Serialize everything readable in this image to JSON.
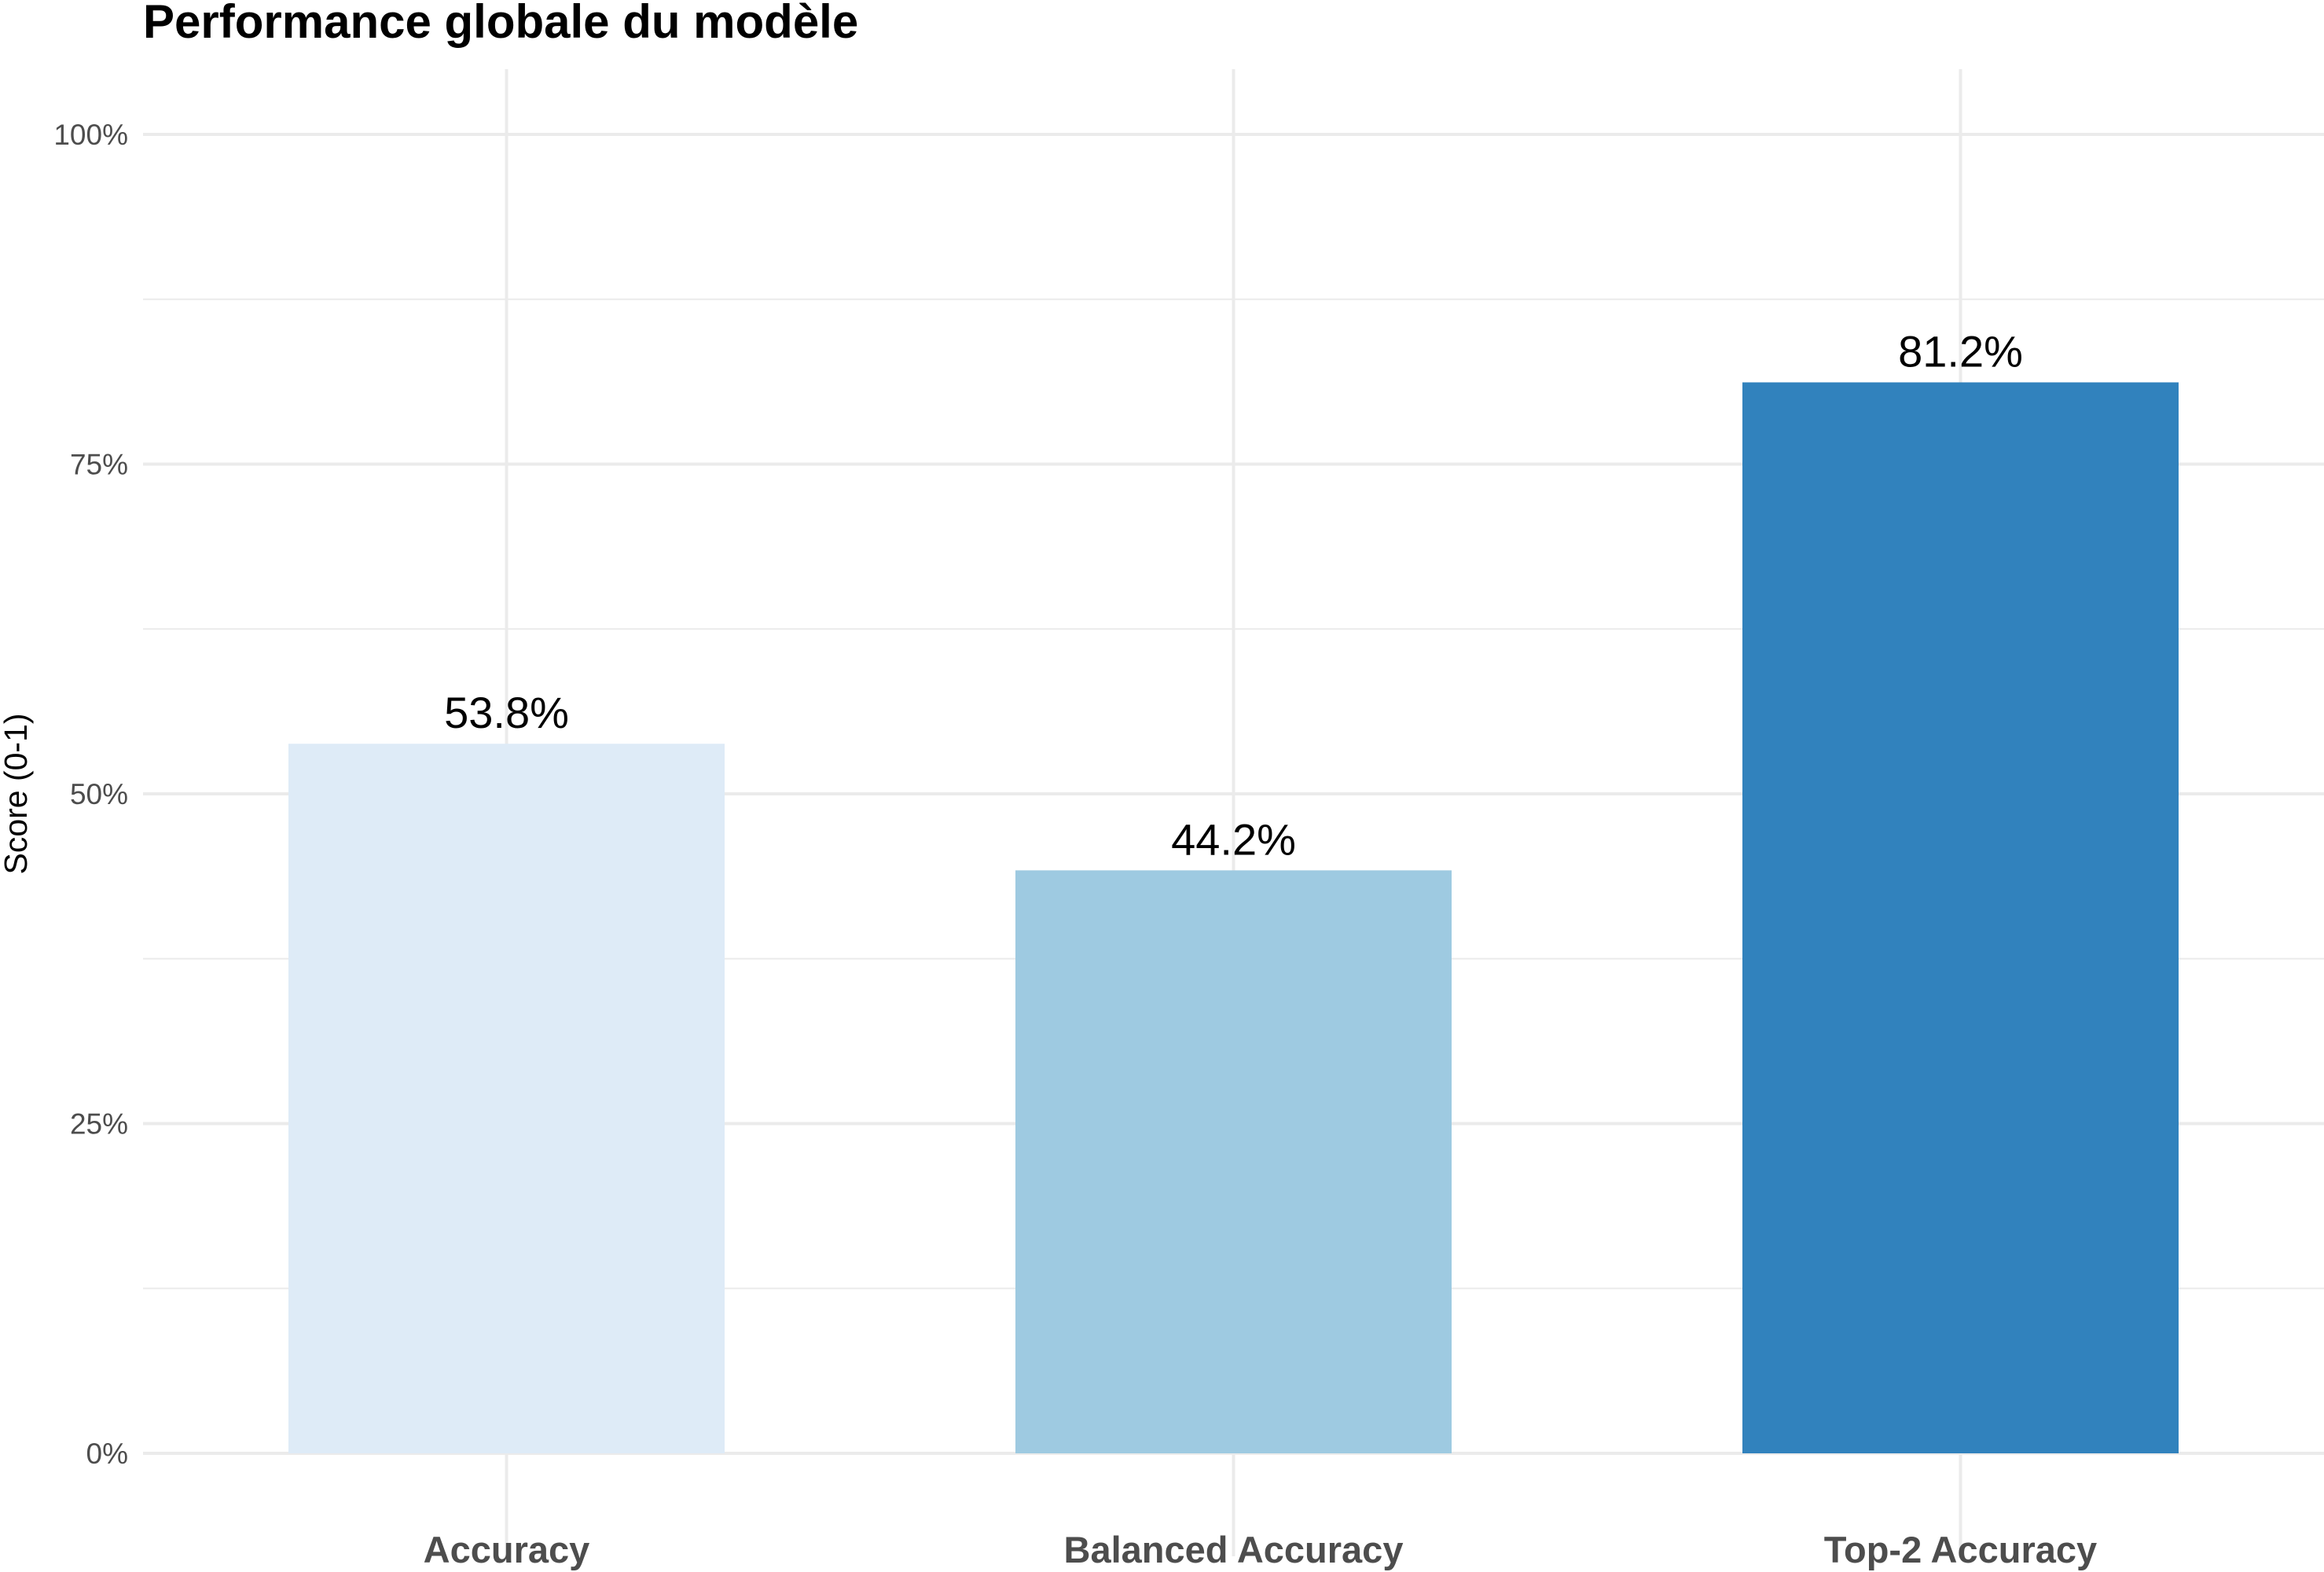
{
  "chart_data": {
    "type": "bar",
    "title": "Performance globale du modèle",
    "xlabel": "",
    "ylabel": "Score (0-1)",
    "categories": [
      "Accuracy",
      "Balanced Accuracy",
      "Top-2 Accuracy"
    ],
    "values": [
      0.538,
      0.442,
      0.812
    ],
    "value_labels": [
      "53.8%",
      "44.2%",
      "81.2%"
    ],
    "bar_colors": [
      "#deebf7",
      "#9ecae1",
      "#3182bd"
    ],
    "ylim": [
      0,
      1
    ],
    "y_ticks": [
      0,
      0.25,
      0.5,
      0.75,
      1
    ],
    "y_tick_labels": [
      "0%",
      "25%",
      "50%",
      "75%",
      "100%"
    ],
    "y_minor_ticks": [
      0.125,
      0.375,
      0.625,
      0.875
    ],
    "grid": true,
    "legend": "none"
  }
}
